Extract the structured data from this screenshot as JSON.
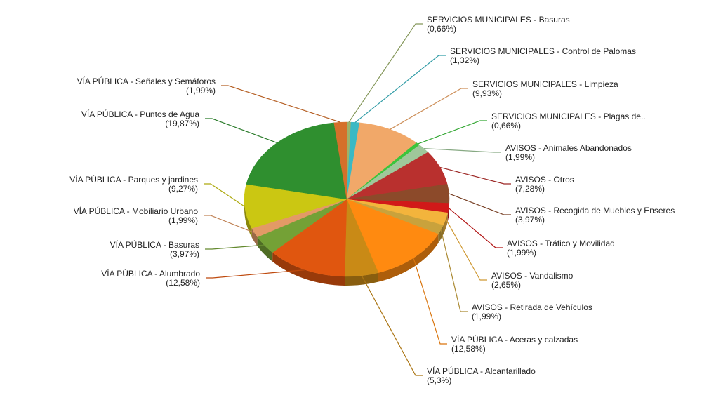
{
  "chart_data": {
    "type": "pie",
    "start_category": "SERVICIOS MUNICIPALES - Basuras",
    "direction": "clockwise",
    "style": "3d-tilted",
    "slices": [
      {
        "label": "SERVICIOS MUNICIPALES - Basuras",
        "value_text": "(0,66%)",
        "value": 0.66,
        "color": "#9db26a",
        "label_side": "right"
      },
      {
        "label": "SERVICIOS MUNICIPALES - Control de Palomas",
        "value_text": "(1,32%)",
        "value": 1.32,
        "color": "#3bb9c4",
        "label_side": "right"
      },
      {
        "label": "SERVICIOS MUNICIPALES - Limpieza",
        "value_text": "(9,93%)",
        "value": 9.93,
        "color": "#f1a869",
        "label_side": "right"
      },
      {
        "label": "SERVICIOS MUNICIPALES - Plagas de..",
        "value_text": "(0,66%)",
        "value": 0.66,
        "color": "#3cc43c",
        "label_side": "right"
      },
      {
        "label": "AVISOS - Animales Abandonados",
        "value_text": "(1,99%)",
        "value": 1.99,
        "color": "#9fc79a",
        "label_side": "right"
      },
      {
        "label": "AVISOS - Otros",
        "value_text": "(7,28%)",
        "value": 7.28,
        "color": "#b9302e",
        "label_side": "right"
      },
      {
        "label": "AVISOS - Recogida de Muebles y Enseres",
        "value_text": "(3,97%)",
        "value": 3.97,
        "color": "#8c4a2a",
        "label_side": "right"
      },
      {
        "label": "AVISOS - Tráfico y Movilidad",
        "value_text": "(1,99%)",
        "value": 1.99,
        "color": "#d11919",
        "label_side": "right"
      },
      {
        "label": "AVISOS - Vandalismo",
        "value_text": "(2,65%)",
        "value": 2.65,
        "color": "#f3b43c",
        "label_side": "right"
      },
      {
        "label": "AVISOS - Retirada de Vehículos",
        "value_text": "(1,99%)",
        "value": 1.99,
        "color": "#c9a23c",
        "label_side": "right"
      },
      {
        "label": "VÍA PÚBLICA - Aceras y calzadas",
        "value_text": "(12,58%)",
        "value": 12.58,
        "color": "#ff8a10",
        "label_side": "right"
      },
      {
        "label": "VÍA PÚBLICA - Alcantarillado",
        "value_text": "(5,3%)",
        "value": 5.3,
        "color": "#c98a16",
        "label_side": "right"
      },
      {
        "label": "VÍA PÚBLICA - Alumbrado",
        "value_text": "(12,58%)",
        "value": 12.58,
        "color": "#e0560f",
        "label_side": "left"
      },
      {
        "label": "VÍA PÚBLICA - Basuras",
        "value_text": "(3,97%)",
        "value": 3.97,
        "color": "#74a136",
        "label_side": "left"
      },
      {
        "label": "VÍA PÚBLICA - Mobiliario Urbano",
        "value_text": "(1,99%)",
        "value": 1.99,
        "color": "#e39a66",
        "label_side": "left"
      },
      {
        "label": "VÍA PÚBLICA - Parques y jardines",
        "value_text": "(9,27%)",
        "value": 9.27,
        "color": "#cbc712",
        "label_side": "left"
      },
      {
        "label": "VÍA PÚBLICA - Puntos de Agua",
        "value_text": "(19,87%)",
        "value": 19.87,
        "color": "#2f8f2f",
        "label_side": "left"
      },
      {
        "label": "VÍA PÚBLICA - Señales y Semáforos",
        "value_text": "(1,99%)",
        "value": 1.99,
        "color": "#d5702a",
        "label_side": "left"
      }
    ]
  }
}
